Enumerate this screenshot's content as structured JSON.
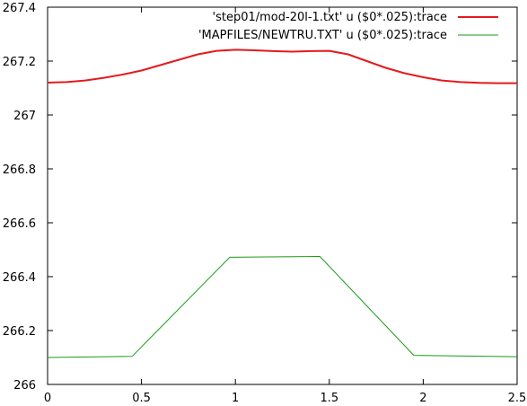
{
  "chart_data": {
    "type": "line",
    "title": "",
    "xlabel": "",
    "ylabel": "",
    "xlim": [
      0,
      2.5
    ],
    "ylim": [
      266,
      267.4
    ],
    "x_ticks": [
      "0",
      "0.5",
      "1",
      "1.5",
      "2",
      "2.5"
    ],
    "y_ticks": [
      "266",
      "266.2",
      "266.4",
      "266.6",
      "266.8",
      "267",
      "267.2",
      "267.4"
    ],
    "grid": false,
    "legend_position": "top-right",
    "series": [
      {
        "name": "'step01/mod-20l-1.txt' u ($0*.025):trace",
        "color": "#e41a1c",
        "x": [
          0,
          0.1,
          0.2,
          0.3,
          0.4,
          0.5,
          0.6,
          0.7,
          0.8,
          0.9,
          1.0,
          1.1,
          1.2,
          1.3,
          1.4,
          1.5,
          1.6,
          1.7,
          1.8,
          1.9,
          2.0,
          2.1,
          2.2,
          2.3,
          2.4,
          2.5
        ],
        "values": [
          267.12,
          267.122,
          267.128,
          267.138,
          267.15,
          267.165,
          267.185,
          267.205,
          267.225,
          267.238,
          267.242,
          267.24,
          267.237,
          267.235,
          267.237,
          267.238,
          267.225,
          267.2,
          267.175,
          267.155,
          267.14,
          267.128,
          267.122,
          267.119,
          267.118,
          267.118
        ]
      },
      {
        "name": "'MAPFILES/NEWTRU.TXT' u ($0*.025):trace",
        "color": "#1a9a1a",
        "x": [
          0,
          0.45,
          0.97,
          1.45,
          1.95,
          2.5
        ],
        "values": [
          266.1,
          266.104,
          266.472,
          266.475,
          266.108,
          266.103
        ]
      }
    ]
  }
}
